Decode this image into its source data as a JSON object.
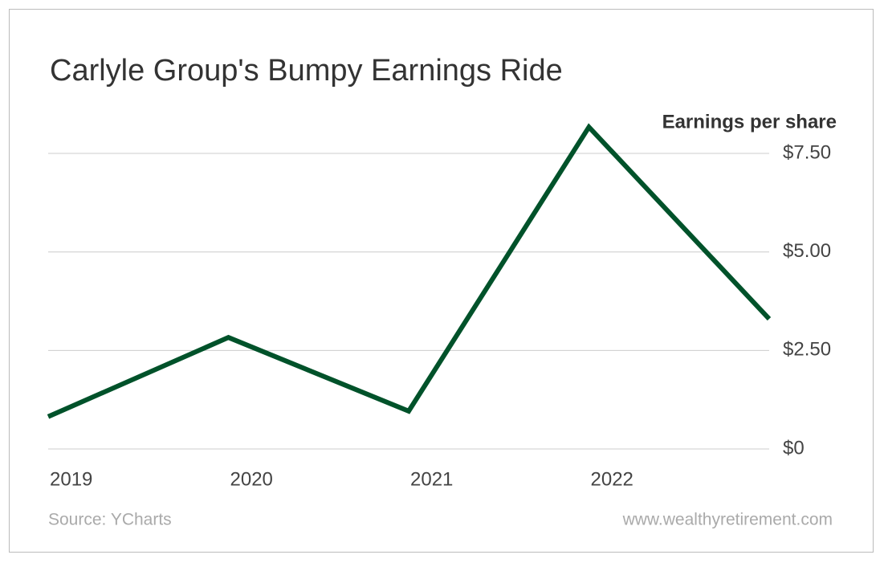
{
  "chart_data": {
    "type": "line",
    "title": "Carlyle Group's Bumpy Earnings Ride",
    "y_label": "Earnings per share",
    "categories": [
      "2019",
      "2020",
      "2021",
      "2022",
      null
    ],
    "series": [
      {
        "name": "Earnings per share",
        "color": "#00522a",
        "values": [
          0.82,
          2.83,
          0.96,
          8.17,
          3.3
        ]
      }
    ],
    "ylim": [
      0,
      8.5
    ],
    "yticks": [
      {
        "value": 0,
        "label": "$0"
      },
      {
        "value": 2.5,
        "label": "$2.50"
      },
      {
        "value": 5,
        "label": "$5.00"
      },
      {
        "value": 7.5,
        "label": "$7.50"
      }
    ],
    "grid": true,
    "source": "Source: YCharts",
    "website": "www.wealthyretirement.com"
  }
}
